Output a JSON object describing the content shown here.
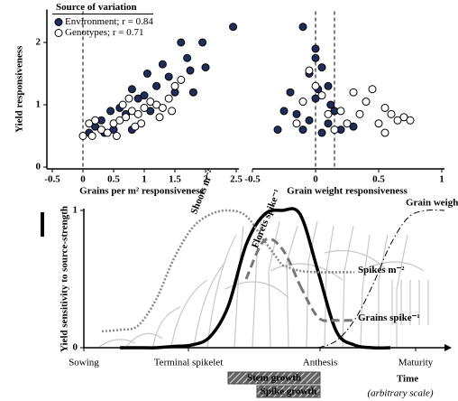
{
  "chart_data": [
    {
      "type": "scatter",
      "ylabel": "Yield responsiveness",
      "xlabel": "Grains per m² responsiveness",
      "legend_title": "Source of variation",
      "xlim": [
        -0.5,
        2.5
      ],
      "ylim": [
        0,
        2.5
      ],
      "xticks": [
        -0.5,
        0,
        0.5,
        1,
        1.5,
        2,
        2.5
      ],
      "yticks": [
        0,
        1,
        2
      ],
      "vlines": [
        0
      ],
      "series": [
        {
          "name": "Environment; r = 0.84",
          "color": "#1f2d5a",
          "x": [
            2.45,
            1.95,
            1.6,
            1.7,
            1.3,
            2.0,
            1.75,
            1.05,
            1.4,
            1.2,
            0.8,
            0.9,
            1.0,
            0.6,
            0.45,
            0.3,
            0.2,
            0.5,
            0.1,
            0.7,
            1.5,
            1.1,
            0.35,
            1.8,
            0.8
          ],
          "values": [
            2.25,
            2.0,
            2.0,
            1.75,
            1.65,
            1.6,
            1.55,
            1.5,
            1.45,
            1.3,
            1.25,
            1.1,
            1.15,
            0.95,
            0.9,
            0.75,
            0.65,
            0.6,
            0.55,
            0.85,
            1.2,
            0.9,
            0.55,
            1.2,
            0.6
          ]
        },
        {
          "name": "Genotypes; r = 0.71",
          "color": "#ffffff",
          "x": [
            0.0,
            0.1,
            0.2,
            0.3,
            0.4,
            0.5,
            0.6,
            0.7,
            0.8,
            0.9,
            1.0,
            1.1,
            1.2,
            1.3,
            1.4,
            1.5,
            1.6,
            0.65,
            0.95,
            1.25,
            0.15,
            0.55,
            0.85,
            1.45,
            0.75
          ],
          "values": [
            0.5,
            0.7,
            0.75,
            0.6,
            0.55,
            0.7,
            0.75,
            0.8,
            0.9,
            0.85,
            0.95,
            1.05,
            1.0,
            0.95,
            1.1,
            1.3,
            1.4,
            1.0,
            0.7,
            0.8,
            0.5,
            0.5,
            0.65,
            0.9,
            1.1
          ]
        }
      ]
    },
    {
      "type": "scatter",
      "xlabel": "Grain weight responsiveness",
      "xlim": [
        -0.5,
        1
      ],
      "ylim": [
        0,
        2.5
      ],
      "xticks": [
        -0.5,
        0,
        0.5,
        1
      ],
      "vlines": [
        0,
        0.15
      ],
      "series": [
        {
          "color": "#1f2d5a",
          "x": [
            -0.1,
            0.0,
            0.0,
            -0.05,
            0.05,
            -0.2,
            -0.25,
            -0.3,
            -0.15,
            0.0,
            0.1,
            0.15,
            0.1,
            -0.1,
            0.2,
            0.05,
            -0.05,
            0.3,
            0.02,
            0.12
          ],
          "values": [
            2.25,
            1.9,
            1.75,
            1.5,
            1.6,
            1.2,
            0.9,
            0.6,
            0.85,
            1.1,
            1.3,
            0.9,
            0.7,
            0.6,
            0.6,
            0.55,
            0.75,
            0.65,
            1.25,
            1.0
          ]
        },
        {
          "color": "#ffffff",
          "x": [
            -0.05,
            0.0,
            0.05,
            -0.1,
            0.2,
            0.3,
            0.4,
            0.45,
            0.55,
            0.6,
            0.65,
            0.7,
            0.75,
            0.5,
            0.35,
            0.25,
            0.15,
            0.1,
            -0.15,
            0.55
          ],
          "values": [
            1.55,
            1.3,
            1.15,
            1.05,
            0.9,
            1.2,
            1.05,
            1.25,
            0.95,
            0.85,
            0.75,
            0.8,
            0.75,
            0.7,
            0.85,
            0.7,
            0.6,
            0.85,
            0.7,
            0.55
          ]
        }
      ]
    },
    {
      "type": "line",
      "ylabel": "Yield sensitivity to source-strength",
      "xlabel": "Time",
      "xlabel_note": "(arbitrary scale)",
      "xlim": [
        0,
        10
      ],
      "ylim": [
        0,
        1
      ],
      "yticks": [
        0,
        1
      ],
      "xticks": [
        {
          "value": 0,
          "label": "Sowing"
        },
        {
          "value": 2.9,
          "label": "Terminal spikelet"
        },
        {
          "value": 6.55,
          "label": "Anthesis"
        },
        {
          "value": 9.2,
          "label": "Maturity"
        }
      ],
      "x": [
        0,
        0.5,
        1,
        1.5,
        2,
        2.5,
        3,
        3.5,
        4,
        4.5,
        5,
        5.5,
        6,
        6.5,
        7,
        7.5,
        8,
        8.5,
        9,
        9.5,
        10
      ],
      "series": [
        {
          "color": "#000000",
          "style": "solid",
          "values": [
            null,
            null,
            0,
            0,
            0,
            0.01,
            0.02,
            0.08,
            0.3,
            0.75,
            0.97,
            1.0,
            0.97,
            0.55,
            0.12,
            0.02,
            0,
            0,
            null,
            null,
            null
          ]
        },
        {
          "name": "Shoots m⁻²",
          "color": "#888888",
          "style": "dotted",
          "values": [
            null,
            0.12,
            0.13,
            0.16,
            0.35,
            0.65,
            0.87,
            0.97,
            1.0,
            0.96,
            0.78,
            0.6,
            null,
            null,
            null,
            null,
            null,
            null,
            null,
            null,
            null
          ]
        },
        {
          "name": "Spikes m⁻²",
          "color": "#888888",
          "style": "dotted",
          "values": [
            null,
            null,
            null,
            null,
            null,
            null,
            null,
            null,
            null,
            null,
            null,
            0.6,
            0.56,
            0.55,
            0.55,
            0.55,
            null,
            null,
            null,
            null,
            null
          ]
        },
        {
          "name": "Florets spike⁻¹",
          "color": "#777777",
          "style": "dashed",
          "values": [
            null,
            null,
            null,
            null,
            null,
            null,
            null,
            null,
            null,
            0.5,
            0.78,
            0.72,
            0.45,
            null,
            null,
            null,
            null,
            null,
            null,
            null,
            null
          ]
        },
        {
          "name": "Grains spike⁻¹",
          "color": "#777777",
          "style": "dashed",
          "values": [
            null,
            null,
            null,
            null,
            null,
            null,
            null,
            null,
            null,
            null,
            null,
            null,
            0.45,
            0.22,
            0.2,
            0.2,
            null,
            null,
            null,
            null,
            null
          ]
        },
        {
          "name": "Grain weight",
          "color": "#000000",
          "style": "dashdot",
          "values": [
            null,
            null,
            null,
            null,
            null,
            null,
            null,
            null,
            null,
            null,
            null,
            null,
            null,
            0,
            0.05,
            0.2,
            0.45,
            0.75,
            0.95,
            1.0,
            1.0
          ]
        }
      ],
      "phases": [
        {
          "name": "Stem growth",
          "start": 4.0,
          "end": 6.55
        },
        {
          "name": "Spike growth",
          "start": 4.8,
          "end": 6.55
        }
      ]
    }
  ]
}
